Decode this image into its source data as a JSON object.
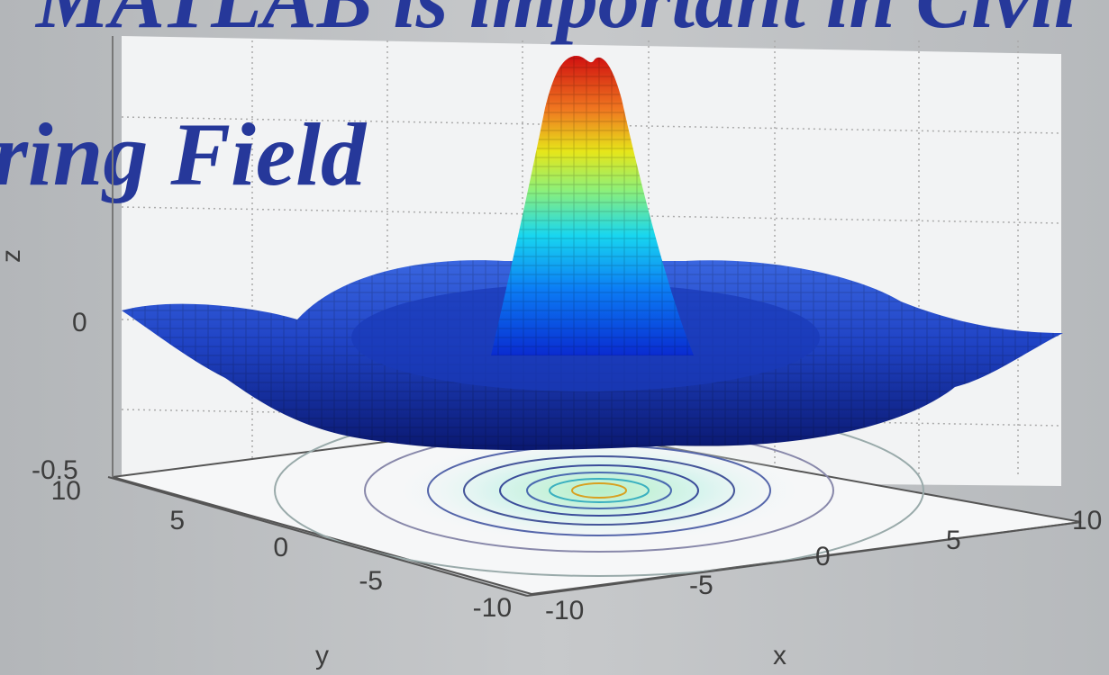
{
  "slide": {
    "title_fragment": "MATLAB is important in Civil",
    "subtitle_fragment": "ring Field",
    "text_color": "#26389a"
  },
  "chart_data": {
    "type": "surface",
    "function": "sinc",
    "x": [
      -10,
      10
    ],
    "y": [
      -10,
      10
    ],
    "zlim": [
      -0.5,
      1
    ],
    "xticks": [
      "-10",
      "-5",
      "0",
      "5",
      "10"
    ],
    "yticks": [
      "-10",
      "-5",
      "0",
      "5",
      "10"
    ],
    "zticks": [
      "-0.5",
      "0"
    ],
    "xlabel": "x",
    "ylabel": "y",
    "zlabel": "z",
    "grid": true,
    "contour_on_floor": true,
    "colormap": [
      "#00008f",
      "#0050ff",
      "#00dfff",
      "#70ff8f",
      "#ffef00",
      "#ff7000",
      "#d00000"
    ]
  }
}
